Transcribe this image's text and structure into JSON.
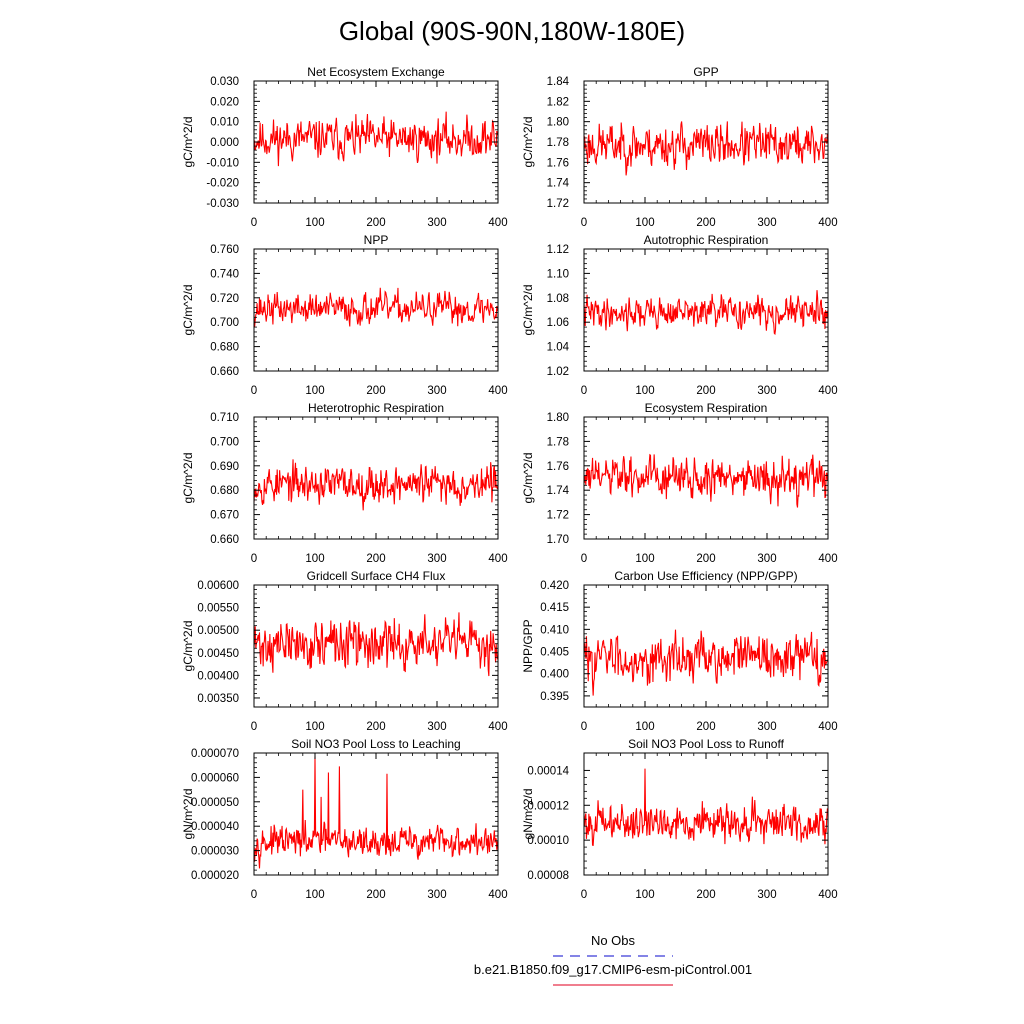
{
  "figure": {
    "title": "Global (90S-90N,180W-180E)",
    "legend": {
      "obs_label": "No Obs",
      "obs_color": "#3b3bd6",
      "model_label": "b.e21.B1850.f09_g17.CMIP6-esm-piControl.001",
      "model_color": "#e8324a"
    }
  },
  "chart_data": [
    {
      "type": "line",
      "title": "Net Ecosystem Exchange",
      "ylabel": "gC/m^2/d",
      "xlim": [
        0,
        400
      ],
      "xticks": [
        0,
        100,
        200,
        300,
        400
      ],
      "ylim": [
        -0.03,
        0.03
      ],
      "yticks": [
        "0.030",
        "0.020",
        "0.010",
        "0.000",
        "-0.010",
        "-0.020",
        "-0.030"
      ],
      "yticks_values": [
        0.03,
        0.02,
        0.01,
        0.0,
        -0.01,
        -0.02,
        -0.03
      ],
      "series": [
        {
          "name": "b.e21.B1850.f09_g17.CMIP6-esm-piControl.001",
          "color": "#ff0000",
          "n": 400,
          "mean": 0.0015,
          "spread": 0.007,
          "seed": 11
        }
      ]
    },
    {
      "type": "line",
      "title": "GPP",
      "ylabel": "gC/m^2/d",
      "xlim": [
        0,
        400
      ],
      "xticks": [
        0,
        100,
        200,
        300,
        400
      ],
      "ylim": [
        1.72,
        1.84
      ],
      "yticks": [
        "1.84",
        "1.82",
        "1.80",
        "1.78",
        "1.76",
        "1.74",
        "1.72"
      ],
      "yticks_values": [
        1.84,
        1.82,
        1.8,
        1.78,
        1.76,
        1.74,
        1.72
      ],
      "series": [
        {
          "name": "b.e21.B1850.f09_g17.CMIP6-esm-piControl.001",
          "color": "#ff0000",
          "n": 400,
          "mean": 1.777,
          "spread": 0.015,
          "seed": 23
        }
      ]
    },
    {
      "type": "line",
      "title": "NPP",
      "ylabel": "gC/m^2/d",
      "xlim": [
        0,
        400
      ],
      "xticks": [
        0,
        100,
        200,
        300,
        400
      ],
      "ylim": [
        0.66,
        0.76
      ],
      "yticks": [
        "0.760",
        "0.740",
        "0.720",
        "0.700",
        "0.680",
        "0.660"
      ],
      "yticks_values": [
        0.76,
        0.74,
        0.72,
        0.7,
        0.68,
        0.66
      ],
      "series": [
        {
          "name": "b.e21.B1850.f09_g17.CMIP6-esm-piControl.001",
          "color": "#ff0000",
          "n": 400,
          "mean": 0.711,
          "spread": 0.009,
          "seed": 37
        }
      ]
    },
    {
      "type": "line",
      "title": "Autotrophic Respiration",
      "ylabel": "gC/m^2/d",
      "xlim": [
        0,
        400
      ],
      "xticks": [
        0,
        100,
        200,
        300,
        400
      ],
      "ylim": [
        1.02,
        1.12
      ],
      "yticks": [
        "1.12",
        "1.10",
        "1.08",
        "1.06",
        "1.04",
        "1.02"
      ],
      "yticks_values": [
        1.12,
        1.1,
        1.08,
        1.06,
        1.04,
        1.02
      ],
      "series": [
        {
          "name": "b.e21.B1850.f09_g17.CMIP6-esm-piControl.001",
          "color": "#ff0000",
          "n": 400,
          "mean": 1.068,
          "spread": 0.009,
          "seed": 41
        }
      ]
    },
    {
      "type": "line",
      "title": "Heterotrophic Respiration",
      "ylabel": "gC/m^2/d",
      "xlim": [
        0,
        400
      ],
      "xticks": [
        0,
        100,
        200,
        300,
        400
      ],
      "ylim": [
        0.66,
        0.71
      ],
      "yticks": [
        "0.710",
        "0.700",
        "0.690",
        "0.680",
        "0.670",
        "0.660"
      ],
      "yticks_values": [
        0.71,
        0.7,
        0.69,
        0.68,
        0.67,
        0.66
      ],
      "series": [
        {
          "name": "b.e21.B1850.f09_g17.CMIP6-esm-piControl.001",
          "color": "#ff0000",
          "n": 400,
          "mean": 0.6825,
          "spread": 0.0055,
          "seed": 53
        }
      ]
    },
    {
      "type": "line",
      "title": "Ecosystem Respiration",
      "ylabel": "gC/m^2/d",
      "xlim": [
        0,
        400
      ],
      "xticks": [
        0,
        100,
        200,
        300,
        400
      ],
      "ylim": [
        1.7,
        1.8
      ],
      "yticks": [
        "1.80",
        "1.78",
        "1.76",
        "1.74",
        "1.72",
        "1.70"
      ],
      "yticks_values": [
        1.8,
        1.78,
        1.76,
        1.74,
        1.72,
        1.7
      ],
      "series": [
        {
          "name": "b.e21.B1850.f09_g17.CMIP6-esm-piControl.001",
          "color": "#ff0000",
          "n": 400,
          "mean": 1.75,
          "spread": 0.012,
          "seed": 61
        }
      ]
    },
    {
      "type": "line",
      "title": "Gridcell Surface CH4 Flux",
      "ylabel": "gC/m^2/d",
      "xlim": [
        0,
        400
      ],
      "xticks": [
        0,
        100,
        200,
        300,
        400
      ],
      "ylim": [
        0.0033,
        0.006
      ],
      "yticks": [
        "0.00600",
        "0.00550",
        "0.00500",
        "0.00450",
        "0.00400",
        "0.00350"
      ],
      "yticks_values": [
        0.006,
        0.0055,
        0.005,
        0.0045,
        0.004,
        0.0035
      ],
      "series": [
        {
          "name": "b.e21.B1850.f09_g17.CMIP6-esm-piControl.001",
          "color": "#ff0000",
          "n": 400,
          "mean": 0.00468,
          "spread": 0.00038,
          "seed": 71
        }
      ]
    },
    {
      "type": "line",
      "title": "Carbon Use Efficiency (NPP/GPP)",
      "ylabel": "NPP/GPP",
      "xlim": [
        0,
        400
      ],
      "xticks": [
        0,
        100,
        200,
        300,
        400
      ],
      "ylim": [
        0.3925,
        0.42
      ],
      "yticks": [
        "0.420",
        "0.415",
        "0.410",
        "0.405",
        "0.400",
        "0.395"
      ],
      "yticks_values": [
        0.42,
        0.415,
        0.41,
        0.405,
        0.4,
        0.395
      ],
      "series": [
        {
          "name": "b.e21.B1850.f09_g17.CMIP6-esm-piControl.001",
          "color": "#ff0000",
          "n": 400,
          "mean": 0.4035,
          "spread": 0.0037,
          "seed": 83
        }
      ]
    },
    {
      "type": "line",
      "title": "Soil NO3 Pool Loss to Leaching",
      "ylabel": "gN/m^2/d",
      "xlim": [
        0,
        400
      ],
      "xticks": [
        0,
        100,
        200,
        300,
        400
      ],
      "ylim": [
        2e-05,
        7e-05
      ],
      "yticks": [
        "0.000070",
        "0.000060",
        "0.000050",
        "0.000040",
        "0.000030",
        "0.000020"
      ],
      "yticks_values": [
        7e-05,
        6e-05,
        5e-05,
        4e-05,
        3e-05,
        2e-05
      ],
      "series": [
        {
          "name": "b.e21.B1850.f09_g17.CMIP6-esm-piControl.001",
          "color": "#ff0000",
          "n": 400,
          "mean": 3.35e-05,
          "spread": 4.5e-06,
          "seed": 97,
          "spikes": [
            [
              100,
              6.85e-05
            ],
            [
              140,
              6.45e-05
            ],
            [
              122,
              6.2e-05
            ],
            [
              218,
              6.15e-05
            ],
            [
              80,
              5.5e-05
            ],
            [
              110,
              5.2e-05
            ]
          ]
        }
      ]
    },
    {
      "type": "line",
      "title": "Soil NO3 Pool Loss to Runoff",
      "ylabel": "gN/m^2/d",
      "xlim": [
        0,
        400
      ],
      "xticks": [
        0,
        100,
        200,
        300,
        400
      ],
      "ylim": [
        8e-05,
        0.00015
      ],
      "yticks": [
        "0.00014",
        "0.00012",
        "0.00010",
        "0.00008"
      ],
      "yticks_values": [
        0.00014,
        0.00012,
        0.0001,
        8e-05
      ],
      "series": [
        {
          "name": "b.e21.B1850.f09_g17.CMIP6-esm-piControl.001",
          "color": "#ff0000",
          "n": 400,
          "mean": 0.00011,
          "spread": 7.5e-06,
          "seed": 101,
          "spikes": [
            [
              100,
              0.000141
            ],
            [
              280,
              0.000123
            ]
          ]
        }
      ]
    }
  ]
}
